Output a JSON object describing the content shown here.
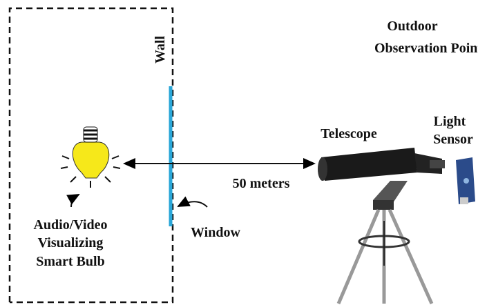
{
  "wall_label": "Wall",
  "observation_point": [
    "Outdoor",
    "Observation Point"
  ],
  "telescope_label": "Telescope",
  "sensor_label": [
    "Light",
    "Sensor"
  ],
  "distance_label": "50 meters",
  "window_label": "Window",
  "bulb_label": [
    "Audio/Video",
    "Visualizing",
    "Smart Bulb"
  ]
}
